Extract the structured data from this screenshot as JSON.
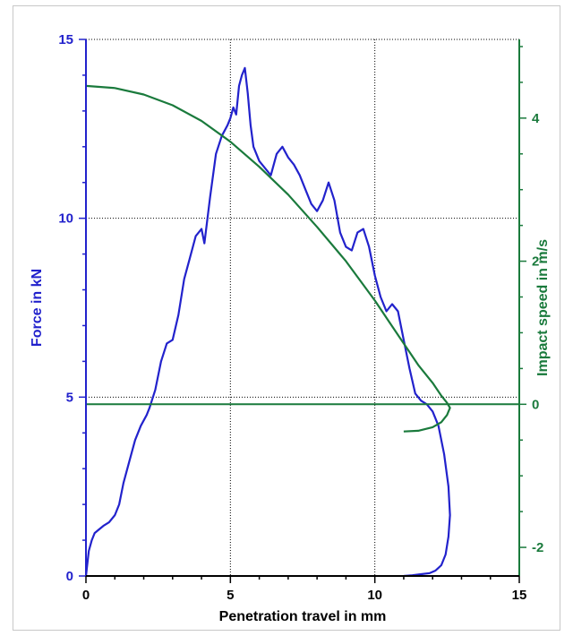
{
  "chart_data": {
    "type": "line",
    "xlabel": "Penetration travel in mm",
    "ylabel": "Force in kN",
    "y2label": "Impact speed in m/s",
    "xlim": [
      0,
      15
    ],
    "ylim": [
      0,
      15
    ],
    "y2lim": [
      -2.4,
      5.1
    ],
    "x_ticks": [
      0,
      5,
      10,
      15
    ],
    "y_ticks": [
      0,
      5,
      10,
      15
    ],
    "y2_ticks": [
      -2,
      0,
      2,
      4
    ],
    "grid": true,
    "colors": {
      "force": "#2222cc",
      "speed": "#1a7a3c",
      "axis": "#000000",
      "grid": "#000000"
    },
    "series": [
      {
        "axis": "left",
        "color": "#2222cc",
        "x": [
          0,
          0.1,
          0.2,
          0.3,
          0.45,
          0.6,
          0.8,
          1.0,
          1.15,
          1.3,
          1.5,
          1.7,
          1.9,
          2.1,
          2.2,
          2.4,
          2.6,
          2.8,
          3.0,
          3.2,
          3.4,
          3.6,
          3.8,
          4.0,
          4.1,
          4.3,
          4.5,
          4.7,
          4.9,
          5.0,
          5.1,
          5.2,
          5.3,
          5.4,
          5.5,
          5.6,
          5.7,
          5.8,
          6.0,
          6.2,
          6.4,
          6.6,
          6.8,
          7.0,
          7.2,
          7.4,
          7.6,
          7.8,
          8.0,
          8.2,
          8.4,
          8.6,
          8.8,
          9.0,
          9.2,
          9.4,
          9.6,
          9.8,
          10.0,
          10.2,
          10.4,
          10.6,
          10.8,
          11.0,
          11.2,
          11.4,
          11.6,
          11.8,
          12.0,
          12.2,
          12.4,
          12.55,
          12.6,
          12.55,
          12.45,
          12.3,
          12.1,
          11.9,
          11.6,
          11.3,
          11.0
        ],
        "values": [
          0.0,
          0.7,
          1.0,
          1.2,
          1.3,
          1.4,
          1.5,
          1.7,
          2.0,
          2.6,
          3.2,
          3.8,
          4.2,
          4.5,
          4.7,
          5.2,
          6.0,
          6.5,
          6.6,
          7.3,
          8.3,
          8.9,
          9.5,
          9.7,
          9.3,
          10.6,
          11.8,
          12.3,
          12.6,
          12.8,
          13.1,
          12.9,
          13.7,
          14.0,
          14.2,
          13.5,
          12.6,
          12.0,
          11.6,
          11.4,
          11.2,
          11.8,
          12.0,
          11.7,
          11.5,
          11.2,
          10.8,
          10.4,
          10.2,
          10.5,
          11.0,
          10.5,
          9.6,
          9.2,
          9.1,
          9.6,
          9.7,
          9.2,
          8.4,
          7.8,
          7.4,
          7.6,
          7.4,
          6.6,
          5.8,
          5.1,
          4.9,
          4.8,
          4.6,
          4.2,
          3.4,
          2.5,
          1.7,
          1.1,
          0.6,
          0.3,
          0.15,
          0.08,
          0.05,
          0.02,
          0.0
        ]
      },
      {
        "axis": "right",
        "color": "#1a7a3c",
        "x": [
          0,
          1,
          2,
          3,
          4,
          5,
          6,
          7,
          8,
          9,
          10,
          10.5,
          11,
          11.5,
          12,
          12.3,
          12.5,
          12.6,
          12.5,
          12.3,
          12.0,
          11.5,
          11.0
        ],
        "values": [
          4.45,
          4.42,
          4.33,
          4.18,
          3.96,
          3.67,
          3.32,
          2.93,
          2.48,
          2.0,
          1.45,
          1.15,
          0.85,
          0.55,
          0.3,
          0.12,
          0.02,
          -0.05,
          -0.15,
          -0.25,
          -0.32,
          -0.37,
          -0.38
        ]
      },
      {
        "axis": "right",
        "color": "#1a7a3c",
        "x": [
          0,
          15
        ],
        "values": [
          0,
          0
        ]
      }
    ]
  }
}
